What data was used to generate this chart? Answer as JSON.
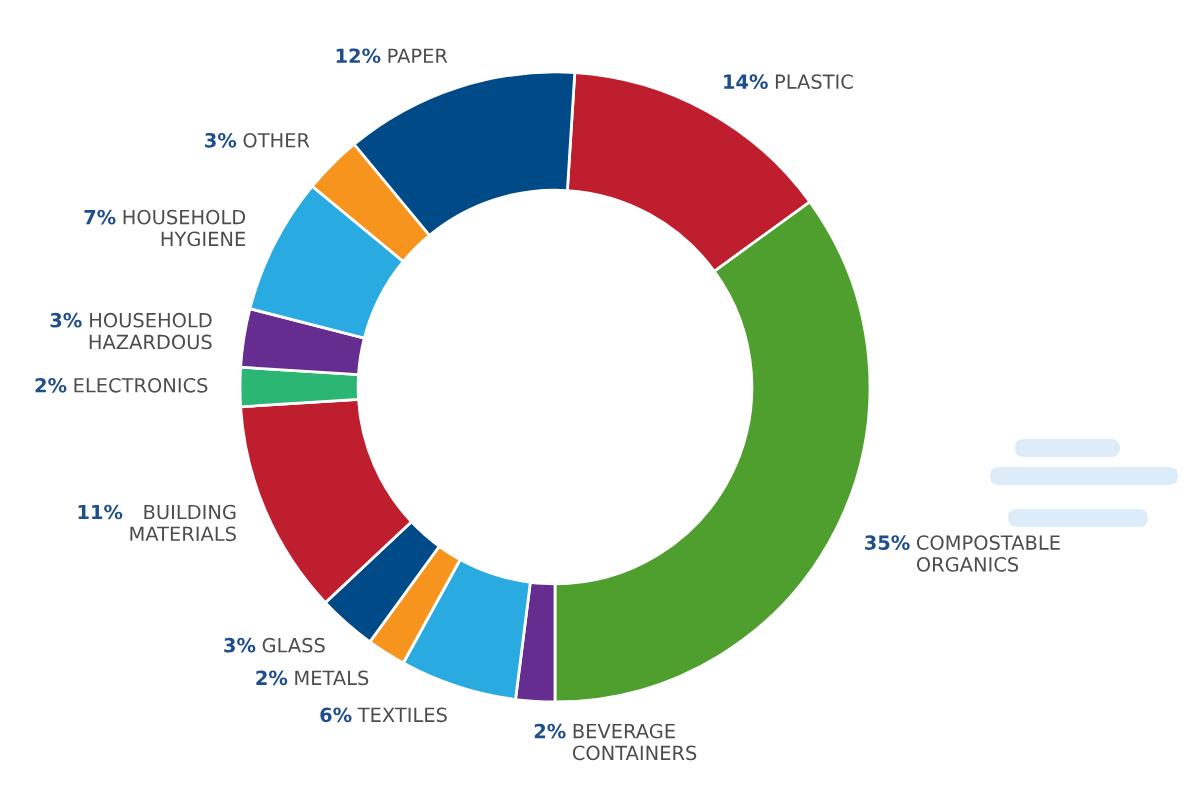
{
  "chart_data": {
    "type": "donut",
    "categories": [
      "PLASTIC",
      "COMPOSTABLE\nORGANICS",
      "BEVERAGE\nCONTAINERS",
      "TEXTILES",
      "METALS",
      "GLASS",
      "BUILDING\nMATERIALS",
      "ELECTRONICS",
      "HOUSEHOLD\nHAZARDOUS",
      "HOUSEHOLD\nHYGIENE",
      "OTHER",
      "PAPER"
    ],
    "values": [
      14,
      35,
      2,
      6,
      2,
      3,
      11,
      2,
      3,
      7,
      3,
      12
    ],
    "value_labels": [
      "14%",
      "35%",
      "2%",
      "6%",
      "2%",
      "3%",
      "11%",
      "2%",
      "3%",
      "7%",
      "3%",
      "12%"
    ],
    "colors": [
      "#be1e2d",
      "#4f9f2f",
      "#662d91",
      "#29abe2",
      "#f7941d",
      "#004a87",
      "#be1e2d",
      "#2bb673",
      "#662d91",
      "#29abe2",
      "#f7941d",
      "#004a87"
    ]
  }
}
